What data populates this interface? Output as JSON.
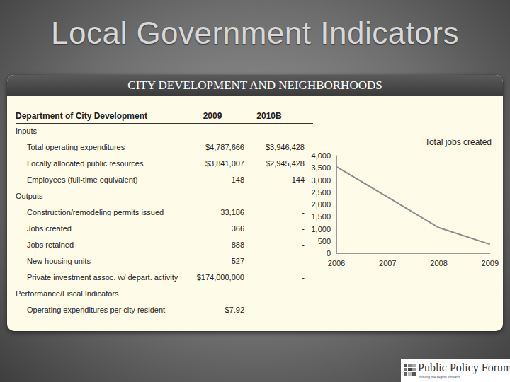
{
  "title": "Local Government Indicators",
  "panel": {
    "header": "CITY DEVELOPMENT AND NEIGHBORHOODS",
    "table": {
      "columns": [
        "Department of City Development",
        "2009",
        "2010B"
      ],
      "sections": [
        {
          "name": "Inputs",
          "rows": [
            [
              "Total operating expenditures",
              "$4,787,666",
              "$3,946,428"
            ],
            [
              "Locally allocated public resources",
              "$3,841,007",
              "$2,945,428"
            ],
            [
              "Employees (full-time equivalent)",
              "148",
              "144"
            ]
          ]
        },
        {
          "name": "Outputs",
          "rows": [
            [
              "Construction/remodeling permits issued",
              "33,186",
              "-"
            ],
            [
              "Jobs created",
              "366",
              "-"
            ],
            [
              "Jobs retained",
              "888",
              "-"
            ],
            [
              "New housing units",
              "527",
              "-"
            ],
            [
              "Private investment assoc. w/ depart. activity",
              "$174,000,000",
              "-"
            ]
          ]
        },
        {
          "name": "Performance/Fiscal Indicators",
          "rows": [
            [
              "Operating expenditures per city resident",
              "$7.92",
              "-"
            ]
          ]
        }
      ]
    }
  },
  "footer": {
    "logo": "Public Policy Forum",
    "tagline": "moving the region forward"
  },
  "chart_data": {
    "type": "line",
    "title": "Total jobs created",
    "categories": [
      "2006",
      "2007",
      "2008",
      "2009"
    ],
    "values": [
      3550,
      2300,
      1050,
      366
    ],
    "color": "#8c8c8c",
    "ylim": [
      0,
      4000
    ],
    "yticks": [
      0,
      500,
      {
        "value": 1000,
        "label": "1,000"
      },
      {
        "value": 1500,
        "label": "1,500"
      },
      {
        "value": 2000,
        "label": "2,000"
      },
      {
        "value": 2500,
        "label": "2,500"
      },
      {
        "value": 3000,
        "label": "3,000"
      },
      {
        "value": 3500,
        "label": "3,500"
      },
      {
        "value": 4000,
        "label": "4,000"
      }
    ],
    "grid": false
  }
}
